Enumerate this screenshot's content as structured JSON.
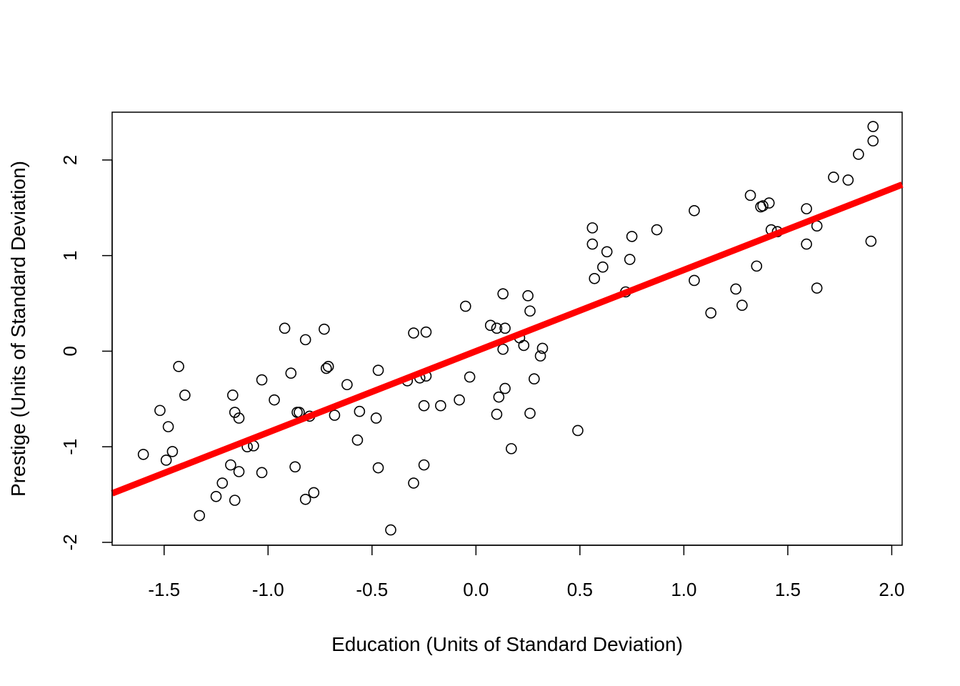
{
  "chart_data": {
    "type": "scatter",
    "title": "",
    "xlabel": "Education (Units of Standard Deviation)",
    "ylabel": "Prestige (Units of Standard Deviation)",
    "xlim": [
      -1.75,
      2.05
    ],
    "ylim": [
      -2.03,
      2.5
    ],
    "x_ticks": [
      -1.5,
      -1.0,
      -0.5,
      0.0,
      0.5,
      1.0,
      1.5,
      2.0
    ],
    "x_tick_labels": [
      "-1.5",
      "-1.0",
      "-0.5",
      "0.0",
      "0.5",
      "1.0",
      "1.5",
      "2.0"
    ],
    "y_ticks": [
      -2,
      -1,
      0,
      1,
      2
    ],
    "y_tick_labels": [
      "-2",
      "-1",
      "0",
      "1",
      "2"
    ],
    "grid": false,
    "legend": "none",
    "regression_line": {
      "slope": 0.85,
      "intercept": 0.0,
      "color": "#ff0000"
    },
    "point_color": "#000000",
    "points": [
      [
        -1.6,
        -1.08
      ],
      [
        -1.52,
        -0.62
      ],
      [
        -1.49,
        -1.14
      ],
      [
        -1.48,
        -0.79
      ],
      [
        -1.46,
        -1.05
      ],
      [
        -1.43,
        -0.16
      ],
      [
        -1.4,
        -0.46
      ],
      [
        -1.33,
        -1.72
      ],
      [
        -1.25,
        -1.52
      ],
      [
        -1.22,
        -1.38
      ],
      [
        -1.18,
        -1.19
      ],
      [
        -1.17,
        -0.46
      ],
      [
        -1.16,
        -0.64
      ],
      [
        -1.16,
        -1.56
      ],
      [
        -1.14,
        -0.7
      ],
      [
        -1.14,
        -1.26
      ],
      [
        -1.1,
        -1.0
      ],
      [
        -1.07,
        -0.99
      ],
      [
        -1.03,
        -0.3
      ],
      [
        -1.03,
        -1.27
      ],
      [
        -0.97,
        -0.51
      ],
      [
        -0.92,
        0.24
      ],
      [
        -0.89,
        -0.23
      ],
      [
        -0.87,
        -1.21
      ],
      [
        -0.86,
        -0.64
      ],
      [
        -0.85,
        -0.64
      ],
      [
        -0.82,
        0.12
      ],
      [
        -0.82,
        -1.55
      ],
      [
        -0.8,
        -0.68
      ],
      [
        -0.78,
        -1.48
      ],
      [
        -0.73,
        0.23
      ],
      [
        -0.72,
        -0.18
      ],
      [
        -0.71,
        -0.16
      ],
      [
        -0.68,
        -0.67
      ],
      [
        -0.62,
        -0.35
      ],
      [
        -0.57,
        -0.93
      ],
      [
        -0.56,
        -0.63
      ],
      [
        -0.48,
        -0.7
      ],
      [
        -0.47,
        -0.2
      ],
      [
        -0.47,
        -1.22
      ],
      [
        -0.41,
        -1.87
      ],
      [
        -0.33,
        -0.31
      ],
      [
        -0.3,
        0.19
      ],
      [
        -0.3,
        -1.38
      ],
      [
        -0.27,
        -0.28
      ],
      [
        -0.25,
        -0.57
      ],
      [
        -0.25,
        -1.19
      ],
      [
        -0.24,
        0.2
      ],
      [
        -0.24,
        -0.26
      ],
      [
        -0.17,
        -0.57
      ],
      [
        -0.08,
        -0.51
      ],
      [
        -0.05,
        0.47
      ],
      [
        -0.03,
        -0.27
      ],
      [
        0.07,
        0.27
      ],
      [
        0.1,
        -0.66
      ],
      [
        0.1,
        0.24
      ],
      [
        0.11,
        -0.48
      ],
      [
        0.13,
        0.6
      ],
      [
        0.13,
        0.02
      ],
      [
        0.14,
        0.24
      ],
      [
        0.14,
        -0.39
      ],
      [
        0.17,
        -1.02
      ],
      [
        0.21,
        0.14
      ],
      [
        0.23,
        0.06
      ],
      [
        0.25,
        0.58
      ],
      [
        0.26,
        0.42
      ],
      [
        0.26,
        -0.65
      ],
      [
        0.28,
        -0.29
      ],
      [
        0.31,
        -0.05
      ],
      [
        0.32,
        0.03
      ],
      [
        0.49,
        -0.83
      ],
      [
        0.56,
        1.29
      ],
      [
        0.56,
        1.12
      ],
      [
        0.57,
        0.76
      ],
      [
        0.61,
        0.88
      ],
      [
        0.63,
        1.04
      ],
      [
        0.72,
        0.62
      ],
      [
        0.74,
        0.96
      ],
      [
        0.75,
        1.2
      ],
      [
        0.87,
        1.27
      ],
      [
        1.05,
        1.47
      ],
      [
        1.05,
        0.74
      ],
      [
        1.13,
        0.4
      ],
      [
        1.25,
        0.65
      ],
      [
        1.28,
        0.48
      ],
      [
        1.32,
        1.63
      ],
      [
        1.35,
        0.89
      ],
      [
        1.37,
        1.51
      ],
      [
        1.38,
        1.52
      ],
      [
        1.41,
        1.55
      ],
      [
        1.42,
        1.27
      ],
      [
        1.45,
        1.25
      ],
      [
        1.59,
        1.49
      ],
      [
        1.59,
        1.12
      ],
      [
        1.64,
        1.31
      ],
      [
        1.64,
        0.66
      ],
      [
        1.72,
        1.82
      ],
      [
        1.79,
        1.79
      ],
      [
        1.84,
        2.06
      ],
      [
        1.9,
        1.15
      ],
      [
        1.91,
        2.35
      ],
      [
        1.91,
        2.2
      ]
    ]
  }
}
